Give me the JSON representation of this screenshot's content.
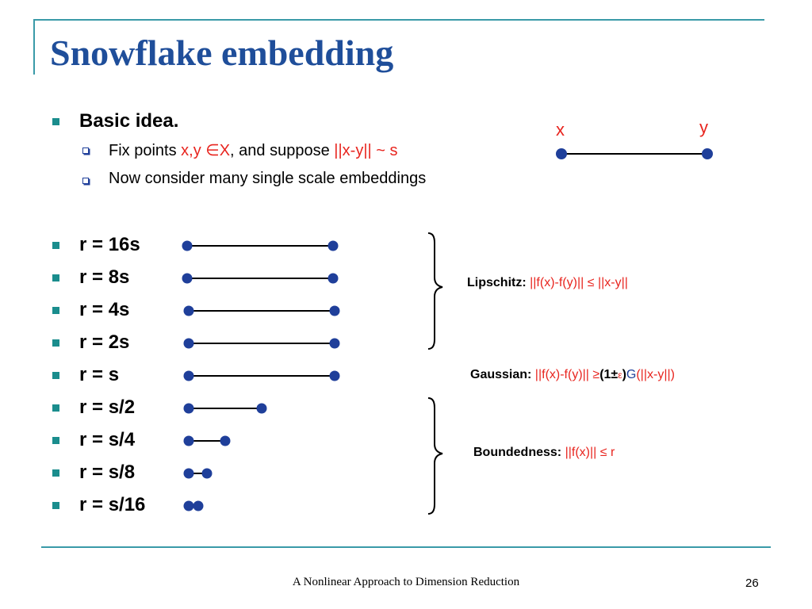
{
  "slide": {
    "title": "Snowflake embedding",
    "footer": "A Nonlinear Approach to Dimension Reduction",
    "page_number": "26"
  },
  "intro": {
    "heading": "Basic idea.",
    "sub1_prefix": "Fix points ",
    "sub1_points": "x,y ",
    "sub1_in": "∈X",
    "sub1_mid": ", and suppose ",
    "sub1_dist": "||x-y|| ~ s",
    "sub2": "Now consider many single scale embeddings"
  },
  "diagram": {
    "x_label": "x",
    "y_label": "y"
  },
  "scales": [
    {
      "label": "r = 16s",
      "length_fraction": 1.0
    },
    {
      "label": "r = 8s",
      "length_fraction": 1.0
    },
    {
      "label": "r = 4s",
      "length_fraction": 1.0
    },
    {
      "label": "r = 2s",
      "length_fraction": 1.0
    },
    {
      "label": "r = s",
      "length_fraction": 1.0
    },
    {
      "label": "r = s/2",
      "length_fraction": 0.5
    },
    {
      "label": "r = s/4",
      "length_fraction": 0.25
    },
    {
      "label": "r = s/8",
      "length_fraction": 0.125
    },
    {
      "label": "r = s/16",
      "length_fraction": 0.0625
    }
  ],
  "properties": {
    "lipschitz_key": "Lipschitz:",
    "lipschitz_val": " ||f(x)-f(y)|| ≤ ||x-y||",
    "gaussian_key": "Gaussian:",
    "gaussian_val1": " ||f(x)-f(y)|| ≥",
    "gaussian_paren": "(1±",
    "gaussian_eps": "ε",
    "gaussian_close": ")",
    "gaussian_G": "G",
    "gaussian_val2": "(||x-y||)",
    "boundedness_key": "Boundedness:",
    "boundedness_val": " ||f(x)|| ≤ r"
  }
}
